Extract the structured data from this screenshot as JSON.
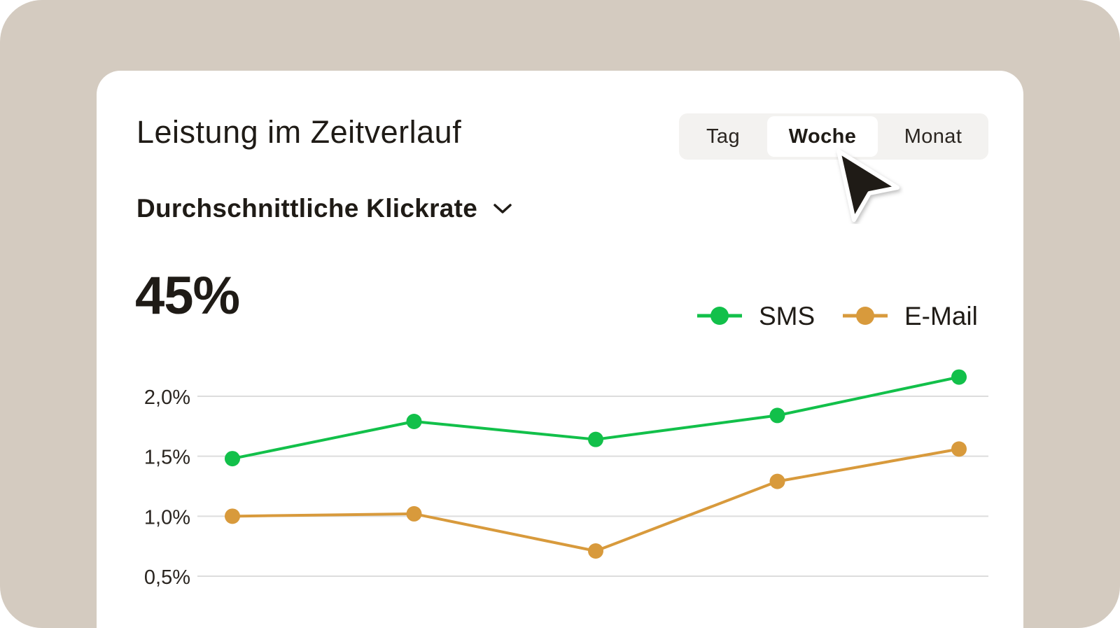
{
  "card": {
    "title": "Leistung im Zeitverlauf",
    "metric_label": "Durchschnittliche Klickrate",
    "headline_value": "45%"
  },
  "period_tabs": [
    {
      "label": "Tag",
      "active": false
    },
    {
      "label": "Woche",
      "active": true
    },
    {
      "label": "Monat",
      "active": false
    }
  ],
  "icons": {
    "dropdown": "chevron-down-icon",
    "pointer": "cursor-arrow-icon"
  },
  "colors": {
    "background": "#d4cbc0",
    "sms": "#12c04a",
    "email": "#d89a3c",
    "text": "#1f1b16",
    "grid": "#dddddd"
  },
  "chart_data": {
    "type": "line",
    "x": [
      1,
      2,
      3,
      4,
      5
    ],
    "series": [
      {
        "name": "SMS",
        "color": "#12c04a",
        "values": [
          1.48,
          1.79,
          1.64,
          1.84,
          2.16
        ]
      },
      {
        "name": "E-Mail",
        "color": "#d89a3c",
        "values": [
          1.0,
          1.02,
          0.71,
          1.29,
          1.56
        ]
      }
    ],
    "yticks": [
      {
        "value": 2.0,
        "label": "2,0%"
      },
      {
        "value": 1.5,
        "label": "1,5%"
      },
      {
        "value": 1.0,
        "label": "1,0%"
      },
      {
        "value": 0.5,
        "label": "0,5%"
      }
    ],
    "ylim": [
      0.5,
      2.0
    ],
    "grid": true,
    "legend_position": "top-right"
  }
}
